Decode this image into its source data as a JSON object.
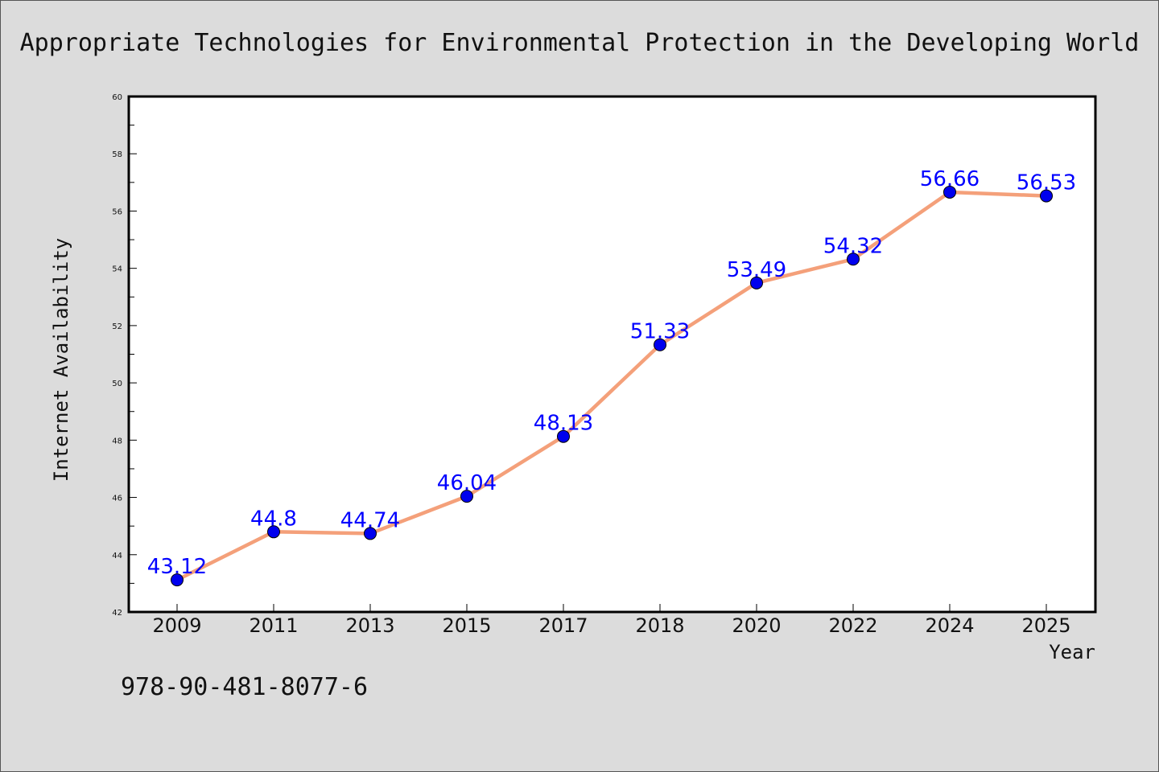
{
  "chart_data": {
    "type": "line",
    "title": "Appropriate Technologies for Environmental Protection in the Developing World",
    "xlabel": "Year",
    "ylabel": "Internet Availability",
    "categories": [
      "2009",
      "2011",
      "2013",
      "2015",
      "2017",
      "2018",
      "2020",
      "2022",
      "2024",
      "2025"
    ],
    "series": [
      {
        "values": [
          43.12,
          44.8,
          44.74,
          46.04,
          48.13,
          51.33,
          53.49,
          54.32,
          56.66,
          56.53
        ],
        "labels": [
          "43.12",
          "44.8",
          "44.74",
          "46.04",
          "48.13",
          "51.33",
          "53.49",
          "54.32",
          "56.66",
          "56.53"
        ],
        "line_color": "#f4a07a",
        "marker_color": "#0000ee"
      }
    ],
    "ylim": [
      42,
      60
    ],
    "yticks": [
      "42",
      "44",
      "46",
      "48",
      "50",
      "52",
      "54",
      "56",
      "58",
      "60"
    ],
    "grid": false,
    "legend": "none"
  },
  "footer": {
    "isbn": "978-90-481-8077-6"
  },
  "colors": {
    "background": "#dcdcdc",
    "plot_background": "#ffffff",
    "label_color": "#0000ff"
  }
}
